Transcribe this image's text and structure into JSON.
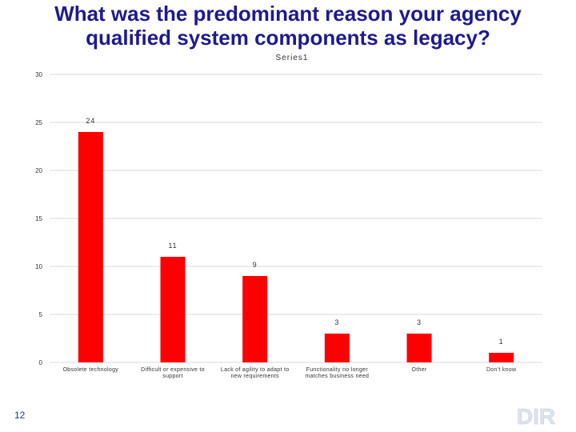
{
  "slide": {
    "title_line1": "What was the predominant reason your agency",
    "title_line2": "qualified system components as legacy?",
    "page_number": "12",
    "logo_text": "DIR"
  },
  "colors": {
    "bar": "#ff0000",
    "title": "#1f1a8c",
    "grid": "#d9d9d9"
  },
  "chart_data": {
    "type": "bar",
    "title": "Series1",
    "categories": [
      [
        "Obsolete technology"
      ],
      [
        "Difficult or expensive to",
        "support"
      ],
      [
        "Lack of agility to adapt to",
        "new requirements"
      ],
      [
        "Functionality no longer",
        "matches business need"
      ],
      [
        "Other"
      ],
      [
        "Don't know"
      ]
    ],
    "series": [
      {
        "name": "Series1",
        "values": [
          24,
          11,
          9,
          3,
          3,
          1
        ]
      }
    ],
    "data_labels": [
      "24",
      "11",
      "9",
      "3",
      "3",
      "1"
    ],
    "yticks": [
      0,
      5,
      10,
      15,
      20,
      25,
      30
    ],
    "ylim": [
      0,
      30
    ],
    "grid": true,
    "legend": "none"
  }
}
